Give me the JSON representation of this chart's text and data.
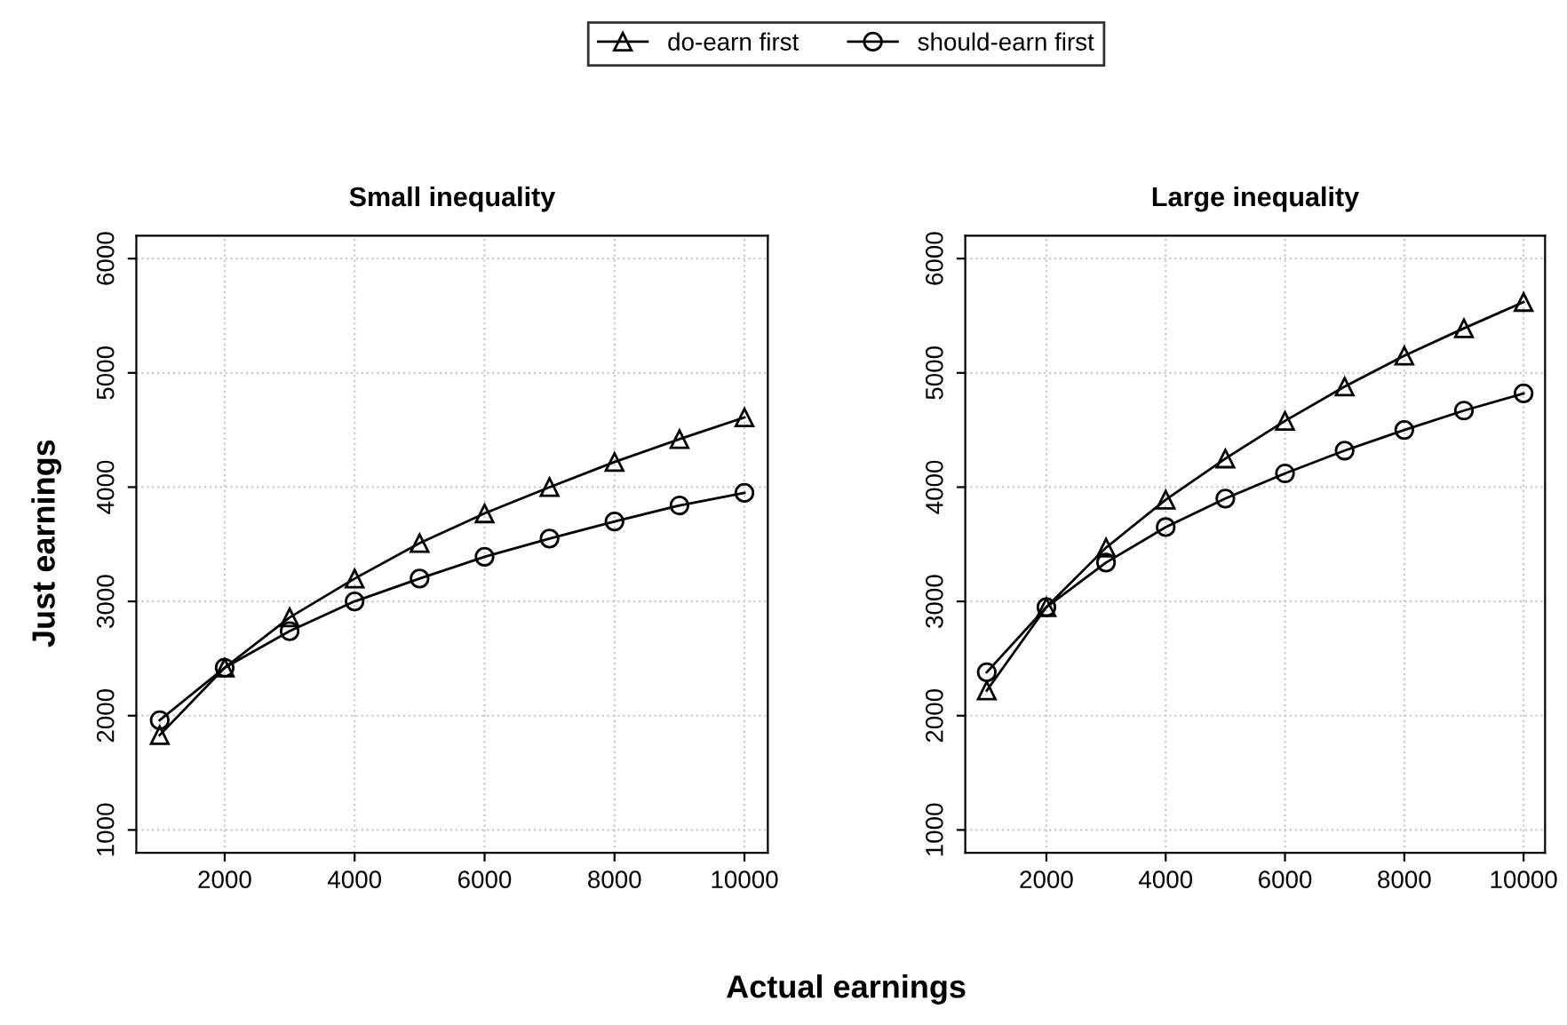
{
  "chart_data": [
    {
      "type": "line",
      "title": "Small inequality",
      "xlabel": "Actual earnings",
      "ylabel": "Just earnings",
      "legend": "top",
      "grid": true,
      "x": [
        1000,
        2000,
        3000,
        4000,
        5000,
        6000,
        7000,
        8000,
        9000,
        10000
      ],
      "xlim": [
        640,
        10360
      ],
      "xticks": [
        2000,
        4000,
        6000,
        8000,
        10000
      ],
      "ylim": [
        800,
        6200
      ],
      "yticks": [
        1000,
        2000,
        3000,
        4000,
        5000,
        6000
      ],
      "series": [
        {
          "name": "do-earn first",
          "color": "#000000",
          "marker": "triangle",
          "values": [
            1830,
            2420,
            2860,
            3200,
            3510,
            3770,
            4000,
            4220,
            4420,
            4610
          ]
        },
        {
          "name": "should-earn first",
          "color": "#000000",
          "marker": "circle",
          "values": [
            1960,
            2420,
            2740,
            3000,
            3200,
            3390,
            3550,
            3700,
            3840,
            3950
          ]
        }
      ]
    },
    {
      "type": "line",
      "title": "Large inequality",
      "grid": true,
      "x": [
        1000,
        2000,
        3000,
        4000,
        5000,
        6000,
        7000,
        8000,
        9000,
        10000
      ],
      "xlim": [
        640,
        10360
      ],
      "xticks": [
        2000,
        4000,
        6000,
        8000,
        10000
      ],
      "ylim": [
        800,
        6200
      ],
      "yticks": [
        1000,
        2000,
        3000,
        4000,
        5000,
        6000
      ],
      "series": [
        {
          "name": "do-earn first",
          "color": "#000000",
          "marker": "triangle",
          "values": [
            2220,
            2950,
            3470,
            3890,
            4250,
            4580,
            4880,
            5150,
            5390,
            5620
          ]
        },
        {
          "name": "should-earn first",
          "color": "#000000",
          "marker": "circle",
          "values": [
            2380,
            2950,
            3340,
            3650,
            3900,
            4120,
            4320,
            4500,
            4670,
            4820
          ]
        }
      ]
    }
  ]
}
